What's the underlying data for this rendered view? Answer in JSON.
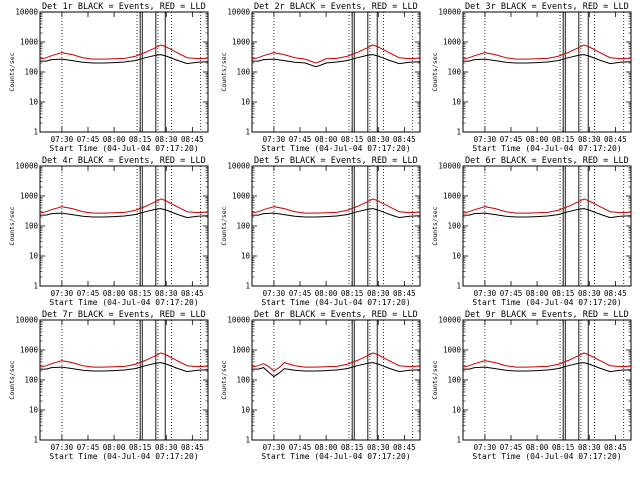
{
  "chart_data": [
    {
      "type": "line",
      "title": "Det 1r BLACK = Events, RED = LLD",
      "xlabel": "Start Time (04-Jul-04 07:17:20)",
      "ylabel": "Counts/sec",
      "log_y": true,
      "ylim": [
        1,
        10000
      ],
      "xlim_hours": [
        7.29,
        8.9
      ],
      "xtick_labels": [
        "07:30",
        "07:45",
        "08:00",
        "08:15",
        "08:30",
        "08:45"
      ],
      "ytick_labels": [
        "1",
        "10",
        "100",
        "1000",
        "10000"
      ],
      "series": [
        {
          "color": "#000000",
          "x": [
            7.29,
            7.35,
            7.4,
            7.5,
            7.6,
            7.7,
            7.8,
            7.9,
            8.0,
            8.1,
            8.2,
            8.3,
            8.4,
            8.45,
            8.5,
            8.6,
            8.7,
            8.8,
            8.9
          ],
          "y": [
            230,
            230,
            260,
            270,
            240,
            210,
            200,
            200,
            205,
            215,
            240,
            300,
            360,
            380,
            340,
            250,
            190,
            210,
            220
          ]
        },
        {
          "color": "#cc0000",
          "x": [
            7.29,
            7.35,
            7.4,
            7.5,
            7.6,
            7.7,
            7.8,
            7.9,
            8.0,
            8.1,
            8.2,
            8.3,
            8.4,
            8.45,
            8.5,
            8.6,
            8.7,
            8.8,
            8.9
          ],
          "y": [
            270,
            300,
            350,
            440,
            380,
            300,
            270,
            270,
            275,
            285,
            330,
            450,
            650,
            800,
            680,
            450,
            300,
            280,
            290
          ]
        }
      ]
    },
    {
      "type": "line",
      "title": "Det 2r BLACK = Events, RED = LLD",
      "xlabel": "Start Time (04-Jul-04 07:17:20)",
      "ylabel": "Counts/sec",
      "log_y": true,
      "ylim": [
        1,
        10000
      ],
      "xlim_hours": [
        7.29,
        8.9
      ],
      "xtick_labels": [
        "07:30",
        "07:45",
        "08:00",
        "08:15",
        "08:30",
        "08:45"
      ],
      "ytick_labels": [
        "1",
        "10",
        "100",
        "1000",
        "10000"
      ],
      "series": [
        {
          "color": "#000000",
          "x": [
            7.29,
            7.35,
            7.4,
            7.5,
            7.6,
            7.7,
            7.8,
            7.9,
            7.95,
            8.0,
            8.1,
            8.2,
            8.3,
            8.4,
            8.45,
            8.5,
            8.6,
            8.7,
            8.8,
            8.9
          ],
          "y": [
            230,
            230,
            260,
            270,
            240,
            210,
            200,
            150,
            170,
            200,
            215,
            240,
            300,
            360,
            380,
            340,
            250,
            190,
            210,
            220
          ]
        },
        {
          "color": "#cc0000",
          "x": [
            7.29,
            7.35,
            7.4,
            7.5,
            7.6,
            7.7,
            7.8,
            7.9,
            7.95,
            8.0,
            8.1,
            8.2,
            8.3,
            8.4,
            8.45,
            8.5,
            8.6,
            8.7,
            8.8,
            8.9
          ],
          "y": [
            270,
            300,
            350,
            440,
            380,
            300,
            270,
            200,
            230,
            275,
            285,
            330,
            450,
            650,
            800,
            680,
            450,
            300,
            280,
            290
          ]
        }
      ]
    },
    {
      "type": "line",
      "title": "Det 3r BLACK = Events, RED = LLD",
      "xlabel": "Start Time (04-Jul-04 07:17:20)",
      "ylabel": "Counts/sec",
      "log_y": true,
      "ylim": [
        1,
        10000
      ],
      "xlim_hours": [
        7.29,
        8.9
      ],
      "xtick_labels": [
        "07:30",
        "07:45",
        "08:00",
        "08:15",
        "08:30",
        "08:45"
      ],
      "ytick_labels": [
        "1",
        "10",
        "100",
        "1000",
        "10000"
      ],
      "series": [
        {
          "color": "#000000",
          "x": [
            7.29,
            7.35,
            7.4,
            7.5,
            7.6,
            7.7,
            7.8,
            7.9,
            8.0,
            8.1,
            8.2,
            8.3,
            8.4,
            8.45,
            8.5,
            8.6,
            8.7,
            8.8,
            8.9
          ],
          "y": [
            230,
            230,
            260,
            270,
            240,
            210,
            200,
            200,
            205,
            215,
            240,
            300,
            360,
            380,
            340,
            250,
            190,
            210,
            220
          ]
        },
        {
          "color": "#cc0000",
          "x": [
            7.29,
            7.35,
            7.4,
            7.5,
            7.6,
            7.7,
            7.8,
            7.9,
            8.0,
            8.1,
            8.2,
            8.3,
            8.4,
            8.45,
            8.5,
            8.6,
            8.7,
            8.8,
            8.9
          ],
          "y": [
            270,
            300,
            350,
            440,
            380,
            300,
            270,
            270,
            275,
            285,
            330,
            450,
            650,
            800,
            680,
            450,
            300,
            280,
            290
          ]
        }
      ]
    },
    {
      "type": "line",
      "title": "Det 4r BLACK = Events, RED = LLD",
      "xlabel": "Start Time (04-Jul-04 07:17:20)",
      "ylabel": "Counts/sec",
      "log_y": true,
      "ylim": [
        1,
        10000
      ],
      "xlim_hours": [
        7.29,
        8.9
      ],
      "xtick_labels": [
        "07:30",
        "07:45",
        "08:00",
        "08:15",
        "08:30",
        "08:45"
      ],
      "ytick_labels": [
        "1",
        "10",
        "100",
        "1000",
        "10000"
      ],
      "series": [
        {
          "color": "#000000",
          "x": [
            7.29,
            7.35,
            7.4,
            7.5,
            7.6,
            7.7,
            7.8,
            7.9,
            8.0,
            8.1,
            8.2,
            8.3,
            8.4,
            8.45,
            8.5,
            8.6,
            8.7,
            8.8,
            8.9
          ],
          "y": [
            230,
            230,
            260,
            270,
            240,
            210,
            200,
            200,
            205,
            215,
            240,
            300,
            360,
            380,
            340,
            250,
            190,
            210,
            220
          ]
        },
        {
          "color": "#cc0000",
          "x": [
            7.29,
            7.35,
            7.4,
            7.5,
            7.6,
            7.7,
            7.8,
            7.9,
            8.0,
            8.1,
            8.2,
            8.3,
            8.4,
            8.45,
            8.5,
            8.6,
            8.7,
            8.8,
            8.9
          ],
          "y": [
            270,
            300,
            350,
            440,
            380,
            300,
            270,
            270,
            275,
            285,
            330,
            450,
            650,
            800,
            680,
            450,
            300,
            280,
            290
          ]
        }
      ]
    },
    {
      "type": "line",
      "title": "Det 5r BLACK = Events, RED = LLD",
      "xlabel": "Start Time (04-Jul-04 07:17:20)",
      "ylabel": "Counts/sec",
      "log_y": true,
      "ylim": [
        1,
        10000
      ],
      "xlim_hours": [
        7.29,
        8.9
      ],
      "xtick_labels": [
        "07:30",
        "07:45",
        "08:00",
        "08:15",
        "08:30",
        "08:45"
      ],
      "ytick_labels": [
        "1",
        "10",
        "100",
        "1000",
        "10000"
      ],
      "series": [
        {
          "color": "#000000",
          "x": [
            7.29,
            7.35,
            7.4,
            7.5,
            7.6,
            7.7,
            7.8,
            7.9,
            8.0,
            8.1,
            8.2,
            8.3,
            8.4,
            8.45,
            8.5,
            8.6,
            8.7,
            8.8,
            8.9
          ],
          "y": [
            230,
            230,
            260,
            270,
            240,
            210,
            200,
            200,
            205,
            215,
            240,
            300,
            360,
            380,
            340,
            250,
            190,
            210,
            220
          ]
        },
        {
          "color": "#cc0000",
          "x": [
            7.29,
            7.35,
            7.4,
            7.5,
            7.6,
            7.7,
            7.8,
            7.9,
            8.0,
            8.1,
            8.2,
            8.3,
            8.4,
            8.45,
            8.5,
            8.6,
            8.7,
            8.8,
            8.9
          ],
          "y": [
            270,
            300,
            350,
            440,
            380,
            300,
            270,
            270,
            275,
            285,
            330,
            450,
            650,
            800,
            680,
            450,
            300,
            280,
            290
          ]
        }
      ]
    },
    {
      "type": "line",
      "title": "Det 6r BLACK = Events, RED = LLD",
      "xlabel": "Start Time (04-Jul-04 07:17:20)",
      "ylabel": "Counts/sec",
      "log_y": true,
      "ylim": [
        1,
        10000
      ],
      "xlim_hours": [
        7.29,
        8.9
      ],
      "xtick_labels": [
        "07:30",
        "07:45",
        "08:00",
        "08:15",
        "08:30",
        "08:45"
      ],
      "ytick_labels": [
        "1",
        "10",
        "100",
        "1000",
        "10000"
      ],
      "series": [
        {
          "color": "#000000",
          "x": [
            7.29,
            7.35,
            7.4,
            7.5,
            7.6,
            7.7,
            7.8,
            7.9,
            8.0,
            8.1,
            8.2,
            8.3,
            8.4,
            8.45,
            8.5,
            8.6,
            8.7,
            8.8,
            8.9
          ],
          "y": [
            230,
            230,
            260,
            270,
            240,
            210,
            200,
            200,
            205,
            215,
            240,
            300,
            360,
            380,
            340,
            250,
            190,
            210,
            220
          ]
        },
        {
          "color": "#cc0000",
          "x": [
            7.29,
            7.35,
            7.4,
            7.5,
            7.6,
            7.7,
            7.8,
            7.9,
            8.0,
            8.1,
            8.2,
            8.3,
            8.4,
            8.45,
            8.5,
            8.6,
            8.7,
            8.8,
            8.9
          ],
          "y": [
            270,
            300,
            350,
            440,
            380,
            300,
            270,
            270,
            275,
            285,
            330,
            450,
            650,
            800,
            680,
            450,
            300,
            280,
            290
          ]
        }
      ]
    },
    {
      "type": "line",
      "title": "Det 7r BLACK = Events, RED = LLD",
      "xlabel": "Start Time (04-Jul-04 07:17:20)",
      "ylabel": "Counts/sec",
      "log_y": true,
      "ylim": [
        1,
        10000
      ],
      "xlim_hours": [
        7.29,
        8.9
      ],
      "xtick_labels": [
        "07:30",
        "07:45",
        "08:00",
        "08:15",
        "08:30",
        "08:45"
      ],
      "ytick_labels": [
        "1",
        "10",
        "100",
        "1000",
        "10000"
      ],
      "series": [
        {
          "color": "#000000",
          "x": [
            7.29,
            7.35,
            7.4,
            7.5,
            7.6,
            7.7,
            7.8,
            7.9,
            8.0,
            8.1,
            8.2,
            8.3,
            8.4,
            8.45,
            8.5,
            8.6,
            8.7,
            8.8,
            8.9
          ],
          "y": [
            230,
            230,
            260,
            270,
            240,
            210,
            200,
            200,
            205,
            215,
            240,
            300,
            360,
            380,
            340,
            250,
            190,
            210,
            220
          ]
        },
        {
          "color": "#cc0000",
          "x": [
            7.29,
            7.35,
            7.4,
            7.5,
            7.6,
            7.7,
            7.8,
            7.9,
            8.0,
            8.1,
            8.2,
            8.3,
            8.4,
            8.45,
            8.5,
            8.6,
            8.7,
            8.8,
            8.9
          ],
          "y": [
            270,
            300,
            350,
            440,
            380,
            300,
            270,
            270,
            275,
            285,
            330,
            450,
            650,
            800,
            680,
            450,
            300,
            280,
            290
          ]
        }
      ]
    },
    {
      "type": "line",
      "title": "Det 8r BLACK = Events, RED = LLD",
      "xlabel": "Start Time (04-Jul-04 07:17:20)",
      "ylabel": "Counts/sec",
      "log_y": true,
      "ylim": [
        1,
        10000
      ],
      "xlim_hours": [
        7.29,
        8.9
      ],
      "xtick_labels": [
        "07:30",
        "07:45",
        "08:00",
        "08:15",
        "08:30",
        "08:45"
      ],
      "ytick_labels": [
        "1",
        "10",
        "100",
        "1000",
        "10000"
      ],
      "series": [
        {
          "color": "#000000",
          "x": [
            7.29,
            7.35,
            7.4,
            7.45,
            7.5,
            7.55,
            7.6,
            7.7,
            7.8,
            7.9,
            8.0,
            8.1,
            8.2,
            8.3,
            8.4,
            8.45,
            8.5,
            8.6,
            8.7,
            8.8,
            8.9
          ],
          "y": [
            230,
            230,
            260,
            180,
            130,
            170,
            240,
            210,
            200,
            200,
            205,
            215,
            240,
            300,
            360,
            380,
            340,
            250,
            190,
            210,
            220
          ]
        },
        {
          "color": "#cc0000",
          "x": [
            7.29,
            7.35,
            7.4,
            7.45,
            7.5,
            7.55,
            7.6,
            7.7,
            7.8,
            7.9,
            8.0,
            8.1,
            8.2,
            8.3,
            8.4,
            8.45,
            8.5,
            8.6,
            8.7,
            8.8,
            8.9
          ],
          "y": [
            270,
            300,
            350,
            280,
            200,
            260,
            380,
            300,
            270,
            270,
            275,
            285,
            330,
            450,
            650,
            800,
            680,
            450,
            300,
            280,
            290
          ]
        }
      ]
    },
    {
      "type": "line",
      "title": "Det 9r BLACK = Events, RED = LLD",
      "xlabel": "Start Time (04-Jul-04 07:17:20)",
      "ylabel": "Counts/sec",
      "log_y": true,
      "ylim": [
        1,
        10000
      ],
      "xlim_hours": [
        7.29,
        8.9
      ],
      "xtick_labels": [
        "07:30",
        "07:45",
        "08:00",
        "08:15",
        "08:30",
        "08:45"
      ],
      "ytick_labels": [
        "1",
        "10",
        "100",
        "1000",
        "10000"
      ],
      "series": [
        {
          "color": "#000000",
          "x": [
            7.29,
            7.35,
            7.4,
            7.5,
            7.6,
            7.7,
            7.8,
            7.9,
            8.0,
            8.1,
            8.2,
            8.3,
            8.4,
            8.45,
            8.5,
            8.6,
            8.7,
            8.8,
            8.9
          ],
          "y": [
            230,
            230,
            260,
            270,
            240,
            210,
            200,
            200,
            205,
            215,
            240,
            300,
            360,
            380,
            340,
            250,
            190,
            210,
            220
          ]
        },
        {
          "color": "#cc0000",
          "x": [
            7.29,
            7.35,
            7.4,
            7.5,
            7.6,
            7.7,
            7.8,
            7.9,
            8.0,
            8.1,
            8.2,
            8.3,
            8.4,
            8.45,
            8.5,
            8.6,
            8.7,
            8.8,
            8.9
          ],
          "y": [
            270,
            300,
            350,
            440,
            380,
            300,
            270,
            270,
            275,
            285,
            330,
            450,
            650,
            800,
            680,
            450,
            300,
            280,
            290
          ]
        }
      ]
    }
  ],
  "markers": {
    "dotted_lines_hours": [
      7.5,
      8.22,
      8.42,
      8.55,
      8.83
    ],
    "solid_lines_hours": [
      8.25,
      8.27,
      8.4,
      8.49
    ]
  },
  "colors": {
    "events": "#000000",
    "lld": "#cc0000"
  }
}
